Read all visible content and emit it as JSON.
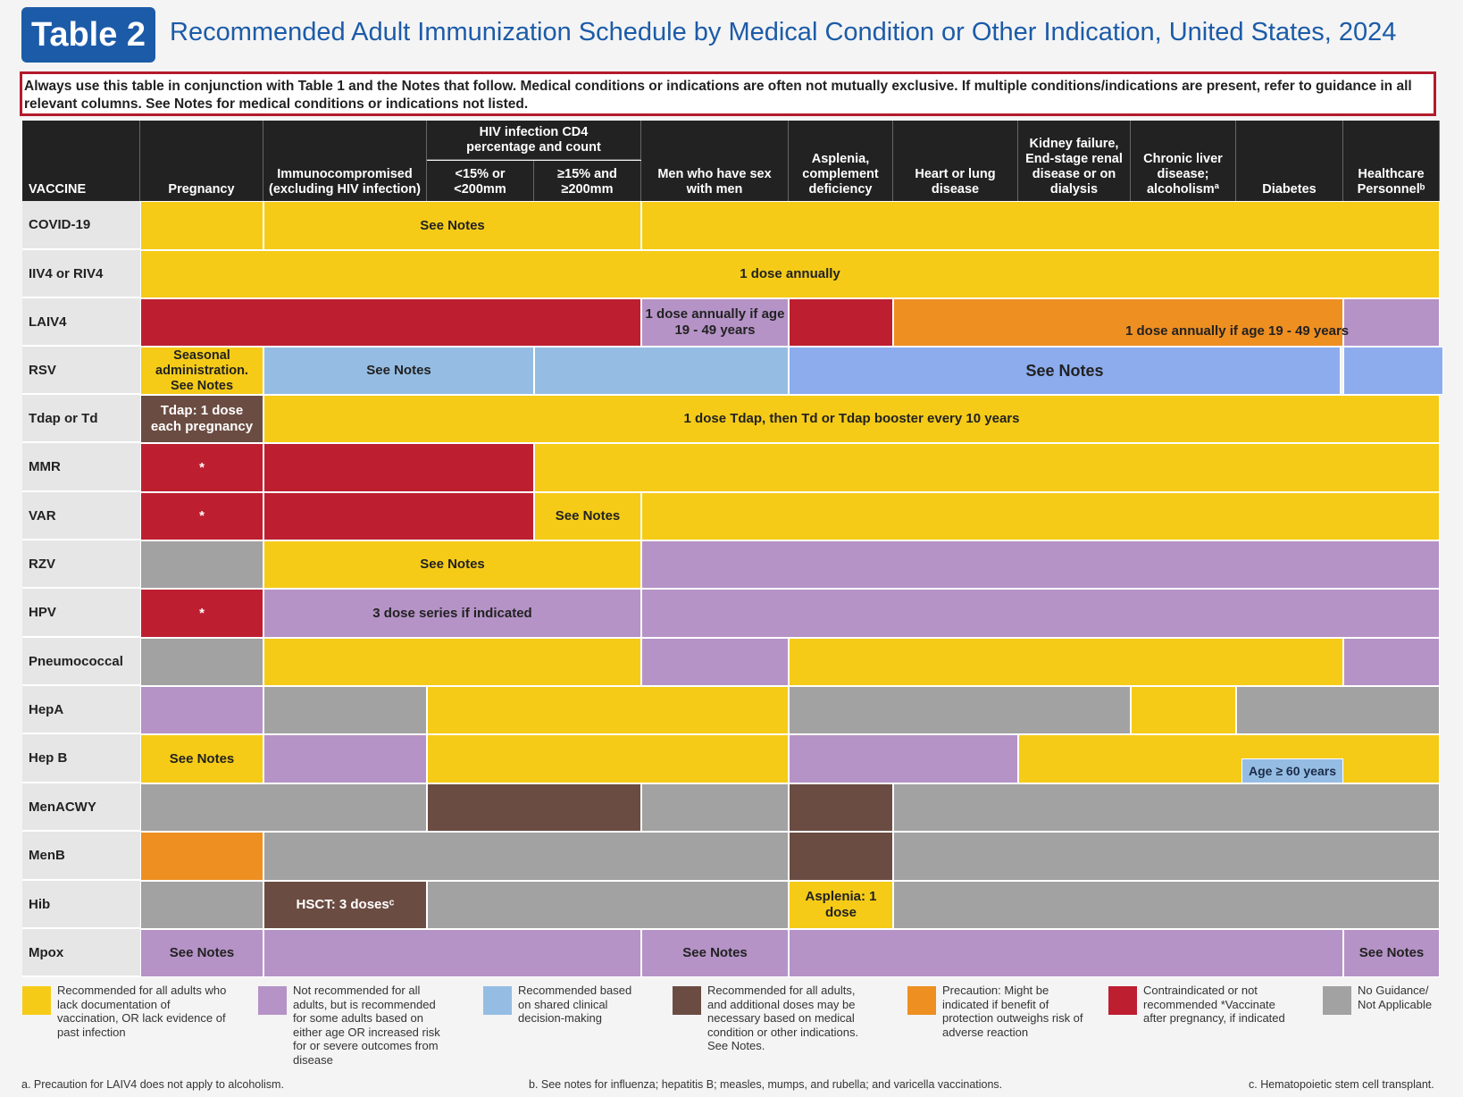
{
  "header": {
    "badge": "Table 2",
    "title": "Recommended Adult Immunization Schedule by Medical Condition or Other Indication, United States, 2024",
    "instructions": "Always use this table in conjunction with Table 1 and the Notes that follow. Medical conditions or indications are often not mutually exclusive. If multiple conditions/indications are present, refer to guidance in all relevant columns. See Notes for medical conditions or indications not listed."
  },
  "columns": {
    "vaccine": "VACCINE",
    "pregnancy": "Pregnancy",
    "immuno": "Immunocompromised (excluding HIV infection)",
    "hiv_group": "HIV infection CD4 percentage and count",
    "hiv_low": "<15% or <200mm",
    "hiv_high": "≥15% and ≥200mm",
    "msm": "Men who have sex with men",
    "asplenia": "Asplenia, complement deficiency",
    "heart": "Heart or lung disease",
    "kidney": "Kidney failure, End-stage renal disease or on dialysis",
    "liver": "Chronic liver disease; alcoholismª",
    "diabetes": "Diabetes",
    "hcp": "Healthcare Personnelᵇ"
  },
  "vaccines": [
    "COVID-19",
    "IIV4 or RIV4",
    "LAIV4",
    "RSV",
    "Tdap or Td",
    "MMR",
    "VAR",
    "RZV",
    "HPV",
    "Pneumococcal",
    "HepA",
    "Hep B",
    "MenACWY",
    "MenB",
    "Hib",
    "Mpox"
  ],
  "cell_text": {
    "see_notes": "See Notes",
    "annual": "1 dose annually",
    "laiv_msm": "1 dose annually if age 19 - 49 years",
    "laiv_wide": "1 dose annually if age 19 - 49 years",
    "rsv_preg": "Seasonal administration. See Notes",
    "tdap_preg": "Tdap: 1 dose each pregnancy",
    "tdap_all": "1 dose Tdap, then Td or Tdap booster every 10 years",
    "star": "*",
    "hpv_series": "3 dose series if indicated",
    "age60": "Age ≥ 60 years",
    "hsct": "HSCT: 3 dosesᶜ",
    "asplenia_hib": "Asplenia: 1 dose"
  },
  "legend": [
    {
      "color": "#f5cb18",
      "text": "Recommended for all adults who lack documentation of vaccination, OR lack evidence of past infection"
    },
    {
      "color": "#b593c6",
      "text": "Not recommended for all adults, but is recommended for some adults based on either age OR increased risk for or severe outcomes from disease"
    },
    {
      "color": "#95bde3",
      "text": "Recommended based on shared clinical decision-making"
    },
    {
      "color": "#6b4c42",
      "text": "Recommended for all adults, and additional doses may be necessary based on medical condition or other indications. See Notes."
    },
    {
      "color": "#ee8f22",
      "text": "Precaution: Might be indicated if benefit of protection outweighs risk of adverse reaction"
    },
    {
      "color": "#bd1f31",
      "text": "Contraindicated or not recommended *Vaccinate after pregnancy, if indicated"
    },
    {
      "color": "#a2a2a2",
      "text": "No Guidance/ Not Applicable"
    }
  ],
  "footnotes": {
    "a": "a. Precaution for LAIV4 does not apply to alcoholism.",
    "b": "b. See notes for influenza; hepatitis B; measles, mumps, and rubella; and varicella vaccinations.",
    "c": "c. Hematopoietic stem cell transplant."
  }
}
